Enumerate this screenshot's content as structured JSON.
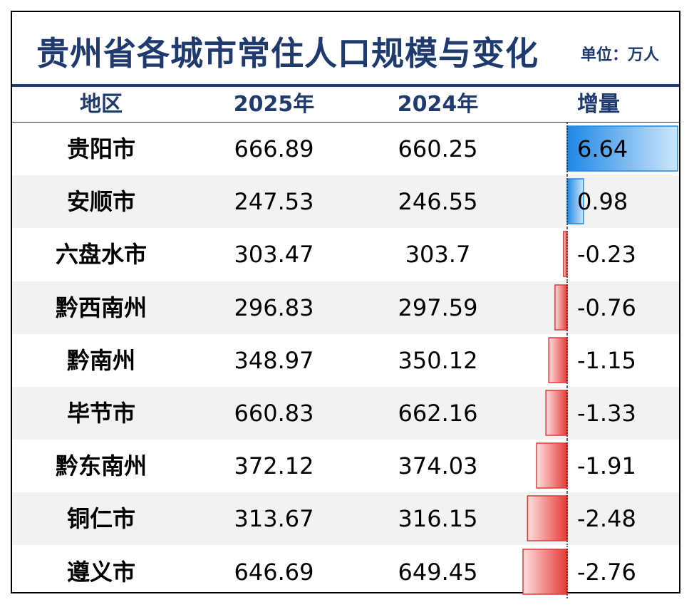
{
  "title": "贵州省各城市常住人口规模与变化",
  "unit": "单位：万人",
  "headers": {
    "region": "地区",
    "y2025": "2025年",
    "y2024": "2024年",
    "delta": "增量"
  },
  "colors": {
    "title": "#1f3a6f",
    "positive": "#1e88e5",
    "negative": "#e53935",
    "row_shade": "#f2f2f2"
  },
  "chart_data": {
    "type": "table",
    "title": "贵州省各城市常住人口规模与变化",
    "unit": "单位：万人",
    "columns": [
      "地区",
      "2025年",
      "2024年",
      "增量"
    ],
    "rows": [
      {
        "region": "贵阳市",
        "y2025": "666.89",
        "y2024": "660.25",
        "delta": "6.64"
      },
      {
        "region": "安顺市",
        "y2025": "247.53",
        "y2024": "246.55",
        "delta": "0.98"
      },
      {
        "region": "六盘水市",
        "y2025": "303.47",
        "y2024": "303.7",
        "delta": "-0.23"
      },
      {
        "region": "黔西南州",
        "y2025": "296.83",
        "y2024": "297.59",
        "delta": "-0.76"
      },
      {
        "region": "黔南州",
        "y2025": "348.97",
        "y2024": "350.12",
        "delta": "-1.15"
      },
      {
        "region": "毕节市",
        "y2025": "660.83",
        "y2024": "662.16",
        "delta": "-1.33"
      },
      {
        "region": "黔东南州",
        "y2025": "372.12",
        "y2024": "374.03",
        "delta": "-1.91"
      },
      {
        "region": "铜仁市",
        "y2025": "313.67",
        "y2024": "316.15",
        "delta": "-2.48"
      },
      {
        "region": "遵义市",
        "y2025": "646.69",
        "y2024": "649.45",
        "delta": "-2.76"
      }
    ]
  }
}
